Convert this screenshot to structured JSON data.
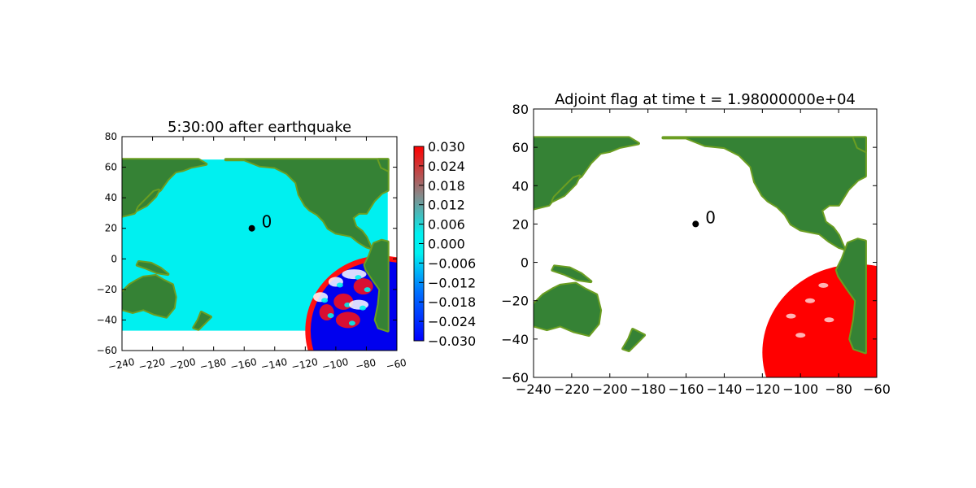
{
  "chart_data": [
    {
      "type": "heatmap",
      "title": "5:30:00 after earthquake",
      "xlabel": "",
      "ylabel": "",
      "xlim": [
        -240,
        -60
      ],
      "ylim": [
        -60,
        80
      ],
      "x_ticks": [
        -240,
        -220,
        -200,
        -180,
        -160,
        -140,
        -120,
        -100,
        -80,
        -60
      ],
      "y_ticks": [
        -60,
        -40,
        -20,
        0,
        20,
        40,
        60,
        80
      ],
      "data_extent": {
        "x": [
          -240,
          -66
        ],
        "y": [
          -47,
          65
        ]
      },
      "gauge": {
        "x": -155,
        "y": 20,
        "label": "0"
      },
      "colorbar": {
        "ticks": [
          "0.030",
          "0.024",
          "0.018",
          "0.012",
          "0.006",
          "0.000",
          "−0.006",
          "−0.012",
          "−0.018",
          "−0.024",
          "−0.030"
        ],
        "range": [
          -0.03,
          0.03
        ]
      },
      "colors": {
        "ocean": "#00f0f0",
        "land": "#358235",
        "shore": "#6b9e22",
        "wave_pos": "#ff1010",
        "wave_neg": "#0000ee"
      }
    },
    {
      "type": "heatmap",
      "title": "Adjoint flag at time t = 1.98000000e+04",
      "xlabel": "",
      "ylabel": "",
      "xlim": [
        -240,
        -60
      ],
      "ylim": [
        -60,
        80
      ],
      "x_ticks": [
        -240,
        -220,
        -200,
        -180,
        -160,
        -140,
        -120,
        -100,
        -80,
        -60
      ],
      "y_ticks": [
        -60,
        -40,
        -20,
        0,
        20,
        40,
        60,
        80
      ],
      "data_extent": {
        "x": [
          -240,
          -66
        ],
        "y": [
          -47,
          65
        ]
      },
      "gauge": {
        "x": -155,
        "y": 20,
        "label": "0"
      },
      "colors": {
        "ocean": "#ffffff",
        "land": "#358235",
        "shore": "#6b9e22",
        "flag": "#ff0000"
      }
    }
  ]
}
